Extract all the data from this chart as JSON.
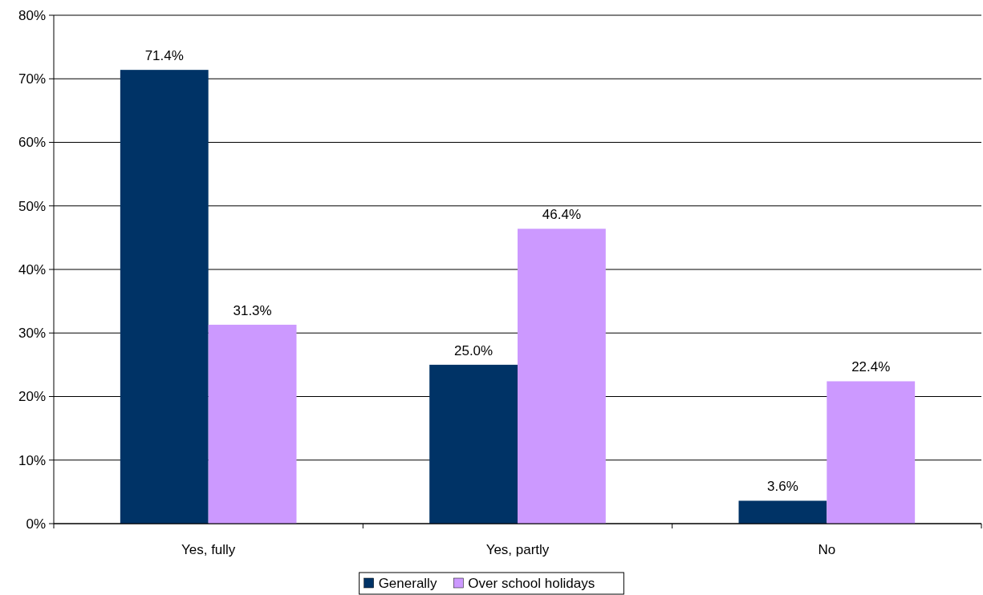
{
  "chart_data": {
    "type": "bar",
    "categories": [
      "Yes, fully",
      "Yes, partly",
      "No"
    ],
    "series": [
      {
        "name": "Generally",
        "color": "#003366",
        "values": [
          71.4,
          25.0,
          3.6
        ],
        "value_labels": [
          "71.4%",
          "25.0%",
          "3.6%"
        ]
      },
      {
        "name": "Over school holidays",
        "color": "#cc99ff",
        "values": [
          31.3,
          46.4,
          22.4
        ],
        "value_labels": [
          "31.3%",
          "46.4%",
          "22.4%"
        ]
      }
    ],
    "ylim": [
      0,
      80
    ],
    "yticks": [
      {
        "value": 0,
        "label": "0%"
      },
      {
        "value": 10,
        "label": "10%"
      },
      {
        "value": 20,
        "label": "20%"
      },
      {
        "value": 30,
        "label": "30%"
      },
      {
        "value": 40,
        "label": "40%"
      },
      {
        "value": 50,
        "label": "50%"
      },
      {
        "value": 60,
        "label": "60%"
      },
      {
        "value": 70,
        "label": "70%"
      },
      {
        "value": 80,
        "label": "80%"
      }
    ],
    "grid": "y",
    "legend": "bottom"
  }
}
